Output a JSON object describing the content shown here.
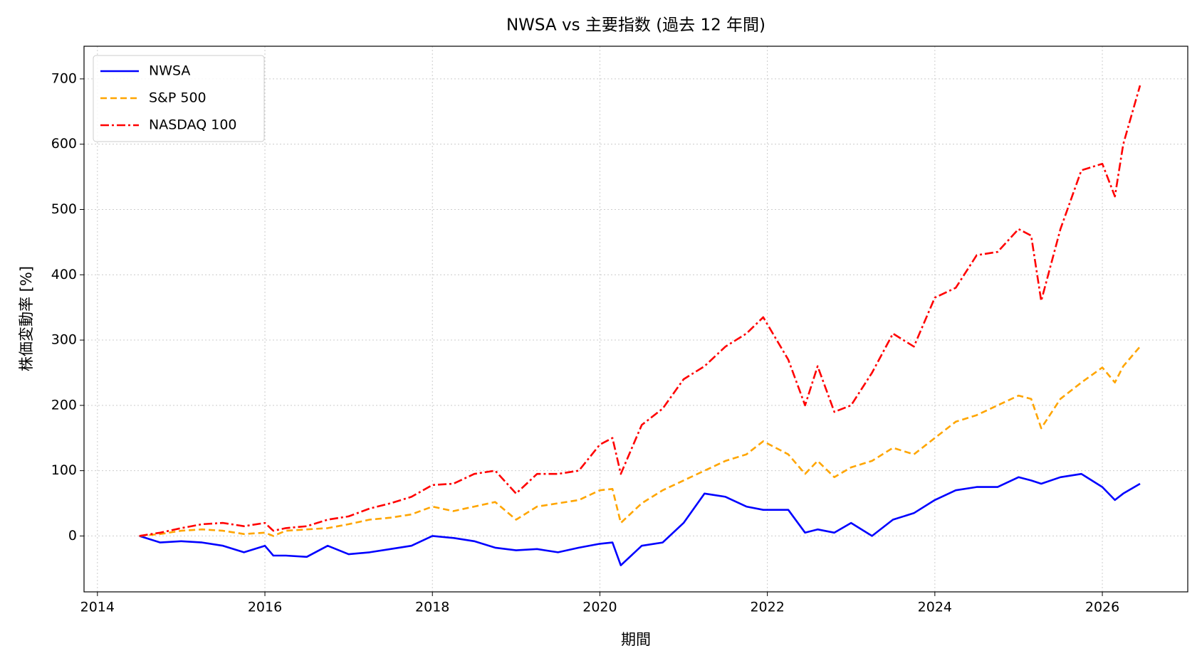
{
  "chart_data": {
    "type": "line",
    "title": "NWSA vs 主要指数 (過去 12 年間)",
    "x_label": "期間",
    "y_label": "株価変動率 [%]",
    "x": [
      2014.5,
      2014.75,
      2015,
      2015.25,
      2015.5,
      2015.75,
      2016,
      2016.1,
      2016.25,
      2016.5,
      2016.75,
      2017,
      2017.25,
      2017.5,
      2017.75,
      2018,
      2018.25,
      2018.5,
      2018.75,
      2019,
      2019.25,
      2019.5,
      2019.75,
      2020,
      2020.15,
      2020.25,
      2020.5,
      2020.75,
      2021,
      2021.25,
      2021.5,
      2021.75,
      2021.95,
      2022.25,
      2022.45,
      2022.6,
      2022.8,
      2023,
      2023.25,
      2023.5,
      2023.75,
      2024,
      2024.25,
      2024.5,
      2024.75,
      2025,
      2025.15,
      2025.27,
      2025.5,
      2025.75,
      2026,
      2026.15,
      2026.25,
      2026.45
    ],
    "series": [
      {
        "name": "NWSA",
        "color": "#0000ff",
        "dash": "solid",
        "values": [
          0,
          -10,
          -8,
          -10,
          -15,
          -25,
          -15,
          -30,
          -30,
          -32,
          -15,
          -28,
          -25,
          -20,
          -15,
          0,
          -3,
          -8,
          -18,
          -22,
          -20,
          -25,
          -18,
          -12,
          -10,
          -45,
          -15,
          -10,
          20,
          65,
          60,
          45,
          40,
          40,
          5,
          10,
          5,
          20,
          0,
          25,
          35,
          55,
          70,
          75,
          75,
          90,
          85,
          80,
          90,
          95,
          75,
          55,
          65,
          80
        ]
      },
      {
        "name": "S&P 500",
        "color": "#ffa500",
        "dash": "dashed",
        "values": [
          0,
          3,
          8,
          10,
          8,
          3,
          5,
          0,
          8,
          10,
          12,
          18,
          25,
          28,
          33,
          45,
          38,
          45,
          52,
          25,
          45,
          50,
          55,
          70,
          72,
          20,
          50,
          70,
          85,
          100,
          115,
          125,
          145,
          125,
          95,
          115,
          90,
          105,
          115,
          135,
          125,
          150,
          175,
          185,
          200,
          215,
          210,
          165,
          210,
          235,
          258,
          235,
          260,
          290
        ]
      },
      {
        "name": "NASDAQ 100",
        "color": "#ff0000",
        "dash": "dashdot",
        "values": [
          0,
          5,
          12,
          18,
          20,
          15,
          20,
          8,
          12,
          15,
          25,
          30,
          42,
          50,
          60,
          78,
          80,
          95,
          100,
          65,
          95,
          95,
          100,
          140,
          150,
          95,
          170,
          195,
          240,
          260,
          290,
          310,
          335,
          270,
          200,
          260,
          190,
          200,
          250,
          310,
          290,
          365,
          380,
          430,
          435,
          470,
          460,
          360,
          470,
          560,
          570,
          520,
          600,
          690
        ]
      }
    ],
    "xlim": [
      2013.84,
      2027.02
    ],
    "xticks": [
      2014,
      2016,
      2018,
      2020,
      2022,
      2024,
      2026
    ],
    "ylim": [
      -85.6,
      750
    ],
    "yticks": [
      0,
      100,
      200,
      300,
      400,
      500,
      600,
      700
    ],
    "grid": true,
    "legend": "upper left"
  }
}
